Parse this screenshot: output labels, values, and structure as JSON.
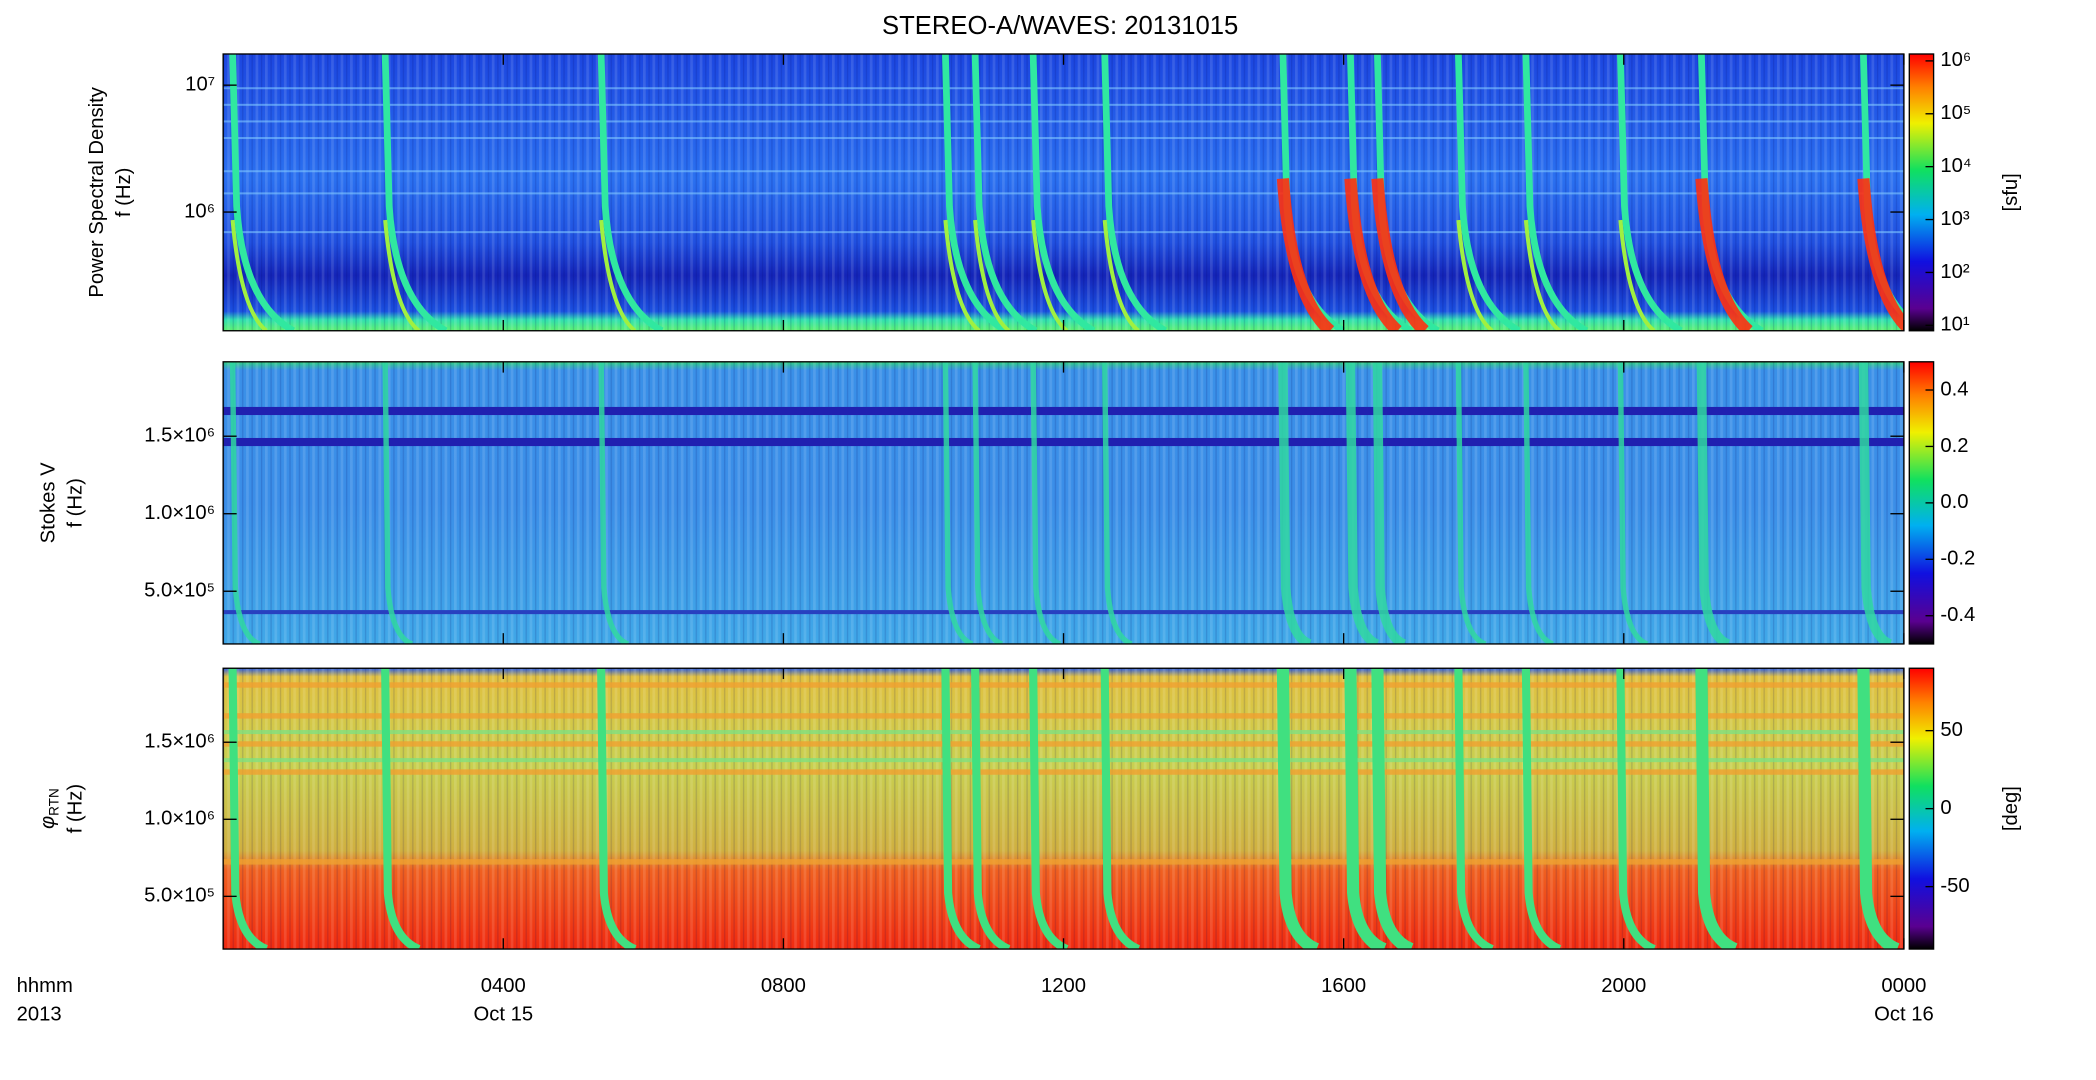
{
  "title": "STEREO-A/WAVES: 20131015",
  "x_axis": {
    "title": [
      "hhmm",
      "2013"
    ],
    "xlim": [
      0,
      24
    ],
    "xticks": [
      {
        "value": 4,
        "label": "0400"
      },
      {
        "value": 8,
        "label": "0800"
      },
      {
        "value": 12,
        "label": "1200"
      },
      {
        "value": 16,
        "label": "1600"
      },
      {
        "value": 20,
        "label": "2000"
      },
      {
        "value": 24,
        "label": "0000"
      }
    ],
    "dates": [
      {
        "value": 4,
        "label": "Oct 15"
      },
      {
        "value": 24,
        "label": "Oct 16"
      }
    ]
  },
  "chart_data": [
    {
      "type": "spectrogram",
      "ylabel": [
        "Power Spectral Density",
        "f (Hz)"
      ],
      "yscale": "log",
      "ylim": [
        116000,
        17600000
      ],
      "yticks": [
        {
          "value": 1000000,
          "label": "10⁶"
        },
        {
          "value": 10000000,
          "label": "10⁷"
        }
      ],
      "colorbar": {
        "label": "[sfu]",
        "scale": "log",
        "lim": [
          7.9,
          1350000
        ],
        "ticks": [
          {
            "value": 10,
            "label": "10¹"
          },
          {
            "value": 100,
            "label": "10²"
          },
          {
            "value": 1000,
            "label": "10³"
          },
          {
            "value": 10000,
            "label": "10⁴"
          },
          {
            "value": 100000,
            "label": "10⁵"
          },
          {
            "value": 1000000,
            "label": "10⁶"
          }
        ]
      }
    },
    {
      "type": "spectrogram",
      "ylabel": [
        "Stokes V",
        "f (Hz)"
      ],
      "yscale": "linear",
      "ylim": [
        160000,
        1980000
      ],
      "yticks": [
        {
          "value": 500000,
          "label": "5.0×10⁵"
        },
        {
          "value": 1000000,
          "label": "1.0×10⁶"
        },
        {
          "value": 1500000,
          "label": "1.5×10⁶"
        }
      ],
      "colorbar": {
        "scale": "linear",
        "lim": [
          -0.5,
          0.5
        ],
        "ticks": [
          {
            "value": -0.4,
            "label": "-0.4"
          },
          {
            "value": -0.2,
            "label": "-0.2"
          },
          {
            "value": 0,
            "label": "0.0"
          },
          {
            "value": 0.2,
            "label": "0.2"
          },
          {
            "value": 0.4,
            "label": "0.4"
          }
        ]
      }
    },
    {
      "type": "spectrogram",
      "ylabel": [
        {
          "symbol": "φ",
          "subscript": "RTN"
        },
        "f (Hz)"
      ],
      "yscale": "linear",
      "ylim": [
        158000,
        1980000
      ],
      "yticks": [
        {
          "value": 500000,
          "label": "5.0×10⁵"
        },
        {
          "value": 1000000,
          "label": "1.0×10⁶"
        },
        {
          "value": 1500000,
          "label": "1.5×10⁶"
        }
      ],
      "colorbar": {
        "label": "[deg]",
        "scale": "linear",
        "lim": [
          -90,
          90
        ],
        "ticks": [
          -50,
          0,
          50
        ]
      }
    }
  ]
}
